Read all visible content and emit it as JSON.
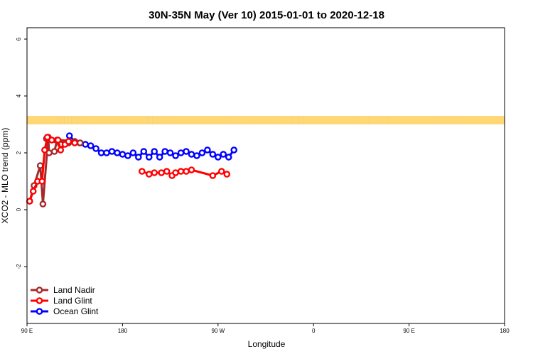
{
  "chart_data": {
    "type": "line",
    "title": "30N-35N May (Ver 10)   2015-01-01 to 2020-12-18",
    "xlabel": "Longitude",
    "ylabel": "XCO2 - MLO trend (ppm)",
    "xlim": [
      -90,
      180
    ],
    "ylim": [
      -4.0,
      6.4
    ],
    "x_ticks": [
      {
        "value": -90,
        "label": "90 E"
      },
      {
        "value": -36,
        "label": "180"
      },
      {
        "value": 18,
        "label": "90 W"
      },
      {
        "value": 72,
        "label": "0"
      },
      {
        "value": 126,
        "label": "90 E"
      },
      {
        "value": 180,
        "label": "180"
      }
    ],
    "y_ticks": [
      {
        "value": -2,
        "label": "-2"
      },
      {
        "value": 0,
        "label": "0"
      },
      {
        "value": 2,
        "label": "2"
      },
      {
        "value": 4,
        "label": "4"
      },
      {
        "value": 6,
        "label": "6"
      }
    ],
    "grid": false,
    "legend_position": "bottom-left",
    "land_mask": {
      "y_range": [
        3.0,
        3.3
      ],
      "land_color": "#FFD875",
      "ocean_color": "#A7BCDB",
      "land_segments": [
        [
          -90,
          -71
        ],
        [
          -71,
          -70
        ],
        [
          -70,
          -69
        ],
        [
          -69,
          -67
        ],
        [
          -67,
          -65
        ],
        [
          -65,
          -64
        ],
        [
          -64,
          -62
        ],
        [
          -62,
          -57
        ],
        [
          -57,
          -36
        ],
        [
          -36,
          -22
        ],
        [
          -22,
          -21
        ],
        [
          -21,
          -19
        ],
        [
          -19,
          -17
        ],
        [
          -17,
          -16
        ],
        [
          -16,
          -14
        ],
        [
          -14,
          -11
        ],
        [
          -11,
          -10
        ],
        [
          -10,
          -9
        ],
        [
          -9,
          -7
        ],
        [
          -7,
          -5
        ],
        [
          -5,
          4
        ],
        [
          4,
          23
        ],
        [
          23,
          25
        ],
        [
          25,
          33
        ],
        [
          33,
          37
        ],
        [
          37,
          41
        ],
        [
          41,
          45
        ],
        [
          45,
          54
        ],
        [
          54,
          56
        ],
        [
          56,
          60
        ],
        [
          60,
          64
        ],
        [
          64,
          66
        ],
        [
          66,
          87
        ],
        [
          87,
          89
        ],
        [
          89,
          90
        ],
        [
          90,
          91
        ],
        [
          91,
          93
        ],
        [
          93,
          95
        ],
        [
          95,
          97
        ],
        [
          97,
          103
        ],
        [
          103,
          109
        ],
        [
          109,
          114
        ],
        [
          114,
          140
        ],
        [
          140,
          142
        ],
        [
          142,
          144
        ],
        [
          144,
          150
        ],
        [
          150,
          154
        ],
        [
          154,
          170
        ],
        [
          170,
          180
        ]
      ]
    },
    "series": [
      {
        "name": "Land Nadir",
        "color": "#A52A2A",
        "x": [
          -88.5,
          -86,
          -82.5,
          -81,
          -78,
          -77.5,
          -74.5,
          -73,
          -66.5,
          -60,
          -63,
          -79,
          -71
        ],
        "y": [
          0.3,
          0.85,
          1.55,
          0.2,
          2.55,
          2.0,
          2.05,
          2.45,
          2.35,
          2.35,
          2.4,
          2.5,
          2.3
        ]
      },
      {
        "name": "Land Glint",
        "color": "#FF0000",
        "x": [
          -88.5,
          -86.5,
          -84,
          -81.5,
          -80,
          -78.5,
          -76,
          -72.5,
          -71,
          -68.5,
          -66.5,
          -63,
          -25,
          -21,
          -18,
          -14,
          -11,
          -8,
          -6,
          -3,
          0,
          3,
          15,
          20,
          23
        ],
        "y": [
          0.3,
          0.65,
          1.0,
          1.0,
          2.1,
          2.55,
          2.45,
          2.45,
          2.1,
          2.3,
          2.4,
          2.35,
          1.35,
          1.25,
          1.3,
          1.3,
          1.35,
          1.2,
          1.3,
          1.35,
          1.35,
          1.4,
          1.2,
          1.35,
          1.25
        ]
      },
      {
        "name": "Ocean Glint",
        "color": "#0000FF",
        "x": [
          -66,
          -63,
          -60,
          -57,
          -54,
          -51,
          -48,
          -45,
          -42,
          -39,
          -36,
          -33,
          -30,
          -27,
          -24,
          -21,
          -18,
          -15,
          -12,
          -9,
          -6,
          -3,
          0,
          3,
          6,
          9,
          12,
          15,
          18,
          21,
          24,
          27
        ],
        "y": [
          2.6,
          2.4,
          2.35,
          2.3,
          2.25,
          2.15,
          2.0,
          2.0,
          2.05,
          2.0,
          1.95,
          1.9,
          2.0,
          1.85,
          2.05,
          1.85,
          2.05,
          1.85,
          2.05,
          2.0,
          1.9,
          2.0,
          2.05,
          1.95,
          1.9,
          2.0,
          2.1,
          1.95,
          1.85,
          1.95,
          1.85,
          2.1
        ]
      }
    ]
  }
}
